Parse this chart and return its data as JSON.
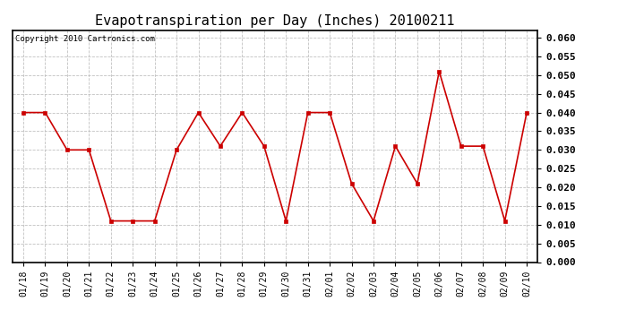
{
  "title": "Evapotranspiration per Day (Inches) 20100211",
  "copyright": "Copyright 2010 Cartronics.com",
  "x_labels": [
    "01/18",
    "01/19",
    "01/20",
    "01/21",
    "01/22",
    "01/23",
    "01/24",
    "01/25",
    "01/26",
    "01/27",
    "01/28",
    "01/29",
    "01/30",
    "01/31",
    "02/01",
    "02/02",
    "02/03",
    "02/04",
    "02/05",
    "02/06",
    "02/07",
    "02/08",
    "02/09",
    "02/10"
  ],
  "y_values": [
    0.04,
    0.04,
    0.03,
    0.03,
    0.011,
    0.011,
    0.011,
    0.03,
    0.04,
    0.031,
    0.04,
    0.031,
    0.011,
    0.04,
    0.04,
    0.021,
    0.011,
    0.031,
    0.021,
    0.051,
    0.031,
    0.031,
    0.011,
    0.04
  ],
  "line_color": "#cc0000",
  "marker_color": "#cc0000",
  "background_color": "#ffffff",
  "plot_bg_color": "#ffffff",
  "grid_color": "#bbbbbb",
  "ylim": [
    0.0,
    0.062
  ],
  "yticks": [
    0.0,
    0.005,
    0.01,
    0.015,
    0.02,
    0.025,
    0.03,
    0.035,
    0.04,
    0.045,
    0.05,
    0.055,
    0.06
  ],
  "title_fontsize": 11,
  "copyright_fontsize": 6.5,
  "tick_fontsize": 7,
  "ytick_fontsize": 8,
  "marker_size": 2.5,
  "line_width": 1.2
}
